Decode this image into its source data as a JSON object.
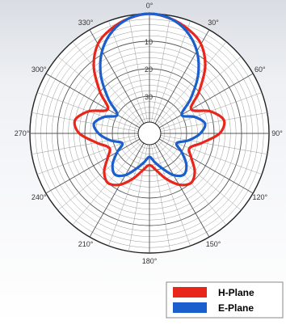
{
  "chart_data": {
    "type": "polar-line",
    "title": "",
    "angle_ticks": [
      "0°",
      "30°",
      "60°",
      "90°",
      "120°",
      "150°",
      "180°",
      "210°",
      "240°",
      "270°",
      "300°",
      "330°"
    ],
    "r_ticks": [
      "10",
      "20",
      "30"
    ],
    "r_scale": {
      "outer": 0,
      "inner": 40,
      "units": "dB"
    },
    "grid": true,
    "legend_position": "bottom-right",
    "series": [
      {
        "name": "H-Plane",
        "color": "#e8261c",
        "angles": [
          0,
          10,
          20,
          30,
          40,
          50,
          60,
          70,
          80,
          90,
          100,
          110,
          120,
          130,
          140,
          150,
          160,
          170,
          180,
          190,
          200,
          210,
          220,
          230,
          240,
          250,
          260,
          270,
          280,
          290,
          300,
          310,
          320,
          330,
          340,
          350
        ],
        "values": [
          0,
          1,
          3,
          6,
          12,
          20,
          26,
          20,
          16,
          18,
          24,
          28,
          26,
          22,
          20,
          22,
          26,
          30,
          32,
          30,
          26,
          22,
          20,
          22,
          26,
          28,
          24,
          18,
          16,
          20,
          26,
          20,
          12,
          6,
          3,
          1
        ]
      },
      {
        "name": "E-Plane",
        "color": "#1a5fcc",
        "angles": [
          0,
          10,
          20,
          30,
          40,
          50,
          60,
          70,
          80,
          90,
          100,
          110,
          120,
          130,
          140,
          150,
          160,
          170,
          180,
          190,
          200,
          210,
          220,
          230,
          240,
          250,
          260,
          270,
          280,
          290,
          300,
          310,
          320,
          330,
          340,
          350
        ],
        "values": [
          0,
          1,
          4,
          9,
          16,
          24,
          30,
          26,
          23,
          25,
          29,
          33,
          30,
          26,
          24,
          26,
          30,
          33,
          35,
          33,
          30,
          26,
          24,
          26,
          30,
          33,
          29,
          25,
          23,
          26,
          30,
          24,
          16,
          9,
          4,
          1
        ]
      }
    ]
  }
}
